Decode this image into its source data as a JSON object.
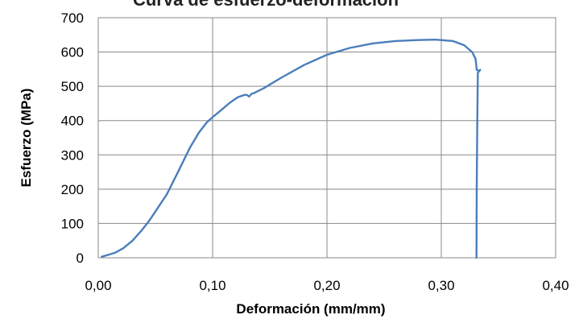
{
  "chart_data": {
    "type": "line",
    "title": "Curva de esfuerzo-deformación",
    "xlabel": "Deformación (mm/mm)",
    "ylabel": "Esfuerzo (MPa)",
    "xlim": [
      0,
      0.4
    ],
    "ylim": [
      0,
      700
    ],
    "x_ticks": [
      "0,00",
      "0,10",
      "0,20",
      "0,30",
      "0,40"
    ],
    "y_ticks": [
      "0",
      "100",
      "200",
      "300",
      "400",
      "500",
      "600",
      "700"
    ],
    "grid": true,
    "legend": "none",
    "colors": {
      "line": "#4a7ebb",
      "grid": "#888888"
    },
    "series": [
      {
        "x": [
          0.003,
          0.008,
          0.015,
          0.022,
          0.03,
          0.038,
          0.045,
          0.052,
          0.06,
          0.066,
          0.072,
          0.08,
          0.088,
          0.095,
          0.1,
          0.108,
          0.115,
          0.122,
          0.128,
          0.13,
          0.132,
          0.134,
          0.136,
          0.145,
          0.16,
          0.18,
          0.2,
          0.22,
          0.24,
          0.26,
          0.28,
          0.295,
          0.31,
          0.32,
          0.327,
          0.33,
          0.331,
          0.333,
          0.334,
          0.332,
          0.3315,
          0.331,
          0.3308
        ],
        "y": [
          3,
          8,
          15,
          28,
          50,
          80,
          110,
          145,
          185,
          225,
          265,
          320,
          365,
          395,
          410,
          432,
          452,
          468,
          475,
          475,
          470,
          478,
          480,
          495,
          525,
          562,
          592,
          612,
          625,
          632,
          635,
          636,
          632,
          620,
          600,
          580,
          548,
          545,
          548,
          540,
          400,
          200,
          0
        ]
      }
    ]
  }
}
